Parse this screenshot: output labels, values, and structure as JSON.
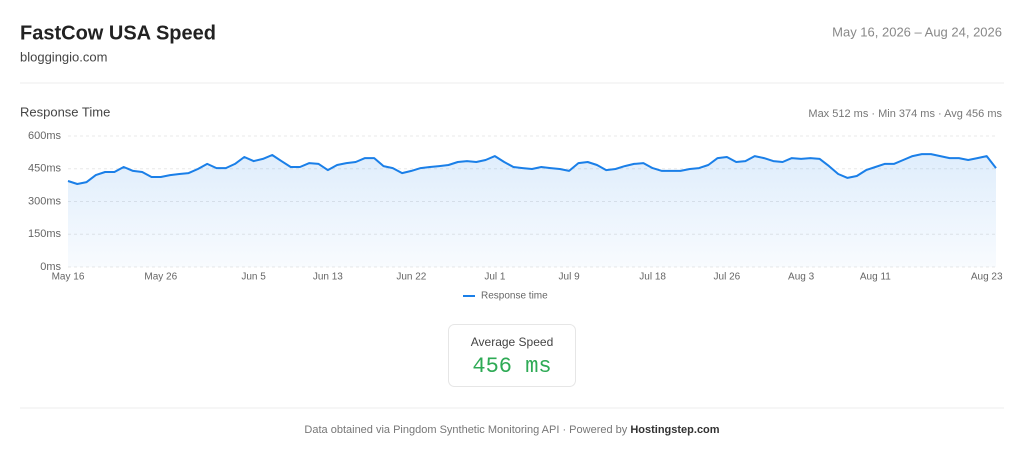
{
  "header": {
    "title": "FastCow USA Speed",
    "subtitle": "bloggingio.com",
    "date_range": "May 16, 2026 – Aug 24, 2026"
  },
  "chart_data": {
    "type": "line",
    "title": "Response Time",
    "subtitle": "Max 512 ms · Min 374 ms · Avg 456 ms",
    "categories": [
      "May 16",
      null,
      null,
      null,
      null,
      null,
      null,
      null,
      null,
      null,
      "May 26",
      null,
      null,
      null,
      null,
      null,
      null,
      null,
      null,
      null,
      "Jun 5",
      null,
      null,
      null,
      null,
      null,
      null,
      null,
      "Jun 13",
      null,
      null,
      null,
      null,
      null,
      null,
      null,
      null,
      "Jun 22",
      null,
      null,
      null,
      null,
      null,
      null,
      null,
      null,
      "Jul 1",
      null,
      null,
      null,
      null,
      null,
      null,
      null,
      "Jul 9",
      null,
      null,
      null,
      null,
      null,
      null,
      null,
      null,
      "Jul 18",
      null,
      null,
      null,
      null,
      null,
      null,
      null,
      "Jul 26",
      null,
      null,
      null,
      null,
      null,
      null,
      null,
      "Aug 3",
      null,
      null,
      null,
      null,
      null,
      null,
      null,
      "Aug 11",
      null,
      null,
      null,
      null,
      null,
      null,
      null,
      null,
      null,
      null,
      null,
      "Aug 23",
      null
    ],
    "series": [
      {
        "name": "Response time",
        "color": "#1a7fe8",
        "values": [
          394,
          380,
          389,
          421,
          435,
          435,
          458,
          440,
          435,
          412,
          412,
          421,
          426,
          430,
          449,
          472,
          453,
          453,
          472,
          504,
          485,
          495,
          513,
          485,
          458,
          458,
          476,
          472,
          444,
          467,
          476,
          481,
          499,
          499,
          462,
          453,
          430,
          440,
          453,
          458,
          462,
          467,
          481,
          485,
          481,
          490,
          508,
          481,
          458,
          453,
          449,
          458,
          453,
          449,
          440,
          476,
          481,
          467,
          444,
          449,
          462,
          472,
          476,
          453,
          440,
          440,
          440,
          449,
          453,
          467,
          499,
          504,
          481,
          485,
          508,
          499,
          485,
          481,
          499,
          495,
          499,
          495,
          462,
          426,
          408,
          417,
          444,
          458,
          472,
          472,
          490,
          508,
          517,
          517,
          508,
          499,
          499,
          490,
          499,
          508,
          453
        ]
      }
    ],
    "ylim": [
      0,
      600
    ],
    "yticks": [
      {
        "value": 0,
        "label": "0ms"
      },
      {
        "value": 150,
        "label": "150ms"
      },
      {
        "value": 300,
        "label": "300ms"
      },
      {
        "value": 450,
        "label": "450ms"
      },
      {
        "value": 600,
        "label": "600ms"
      }
    ],
    "grid": true,
    "legend": "bottom"
  },
  "card": {
    "label": "Average Speed",
    "value": "456 ms"
  },
  "footer": {
    "text": "Data obtained via Pingdom Synthetic Monitoring API · Powered by ",
    "link": "Hostingstep.com"
  }
}
